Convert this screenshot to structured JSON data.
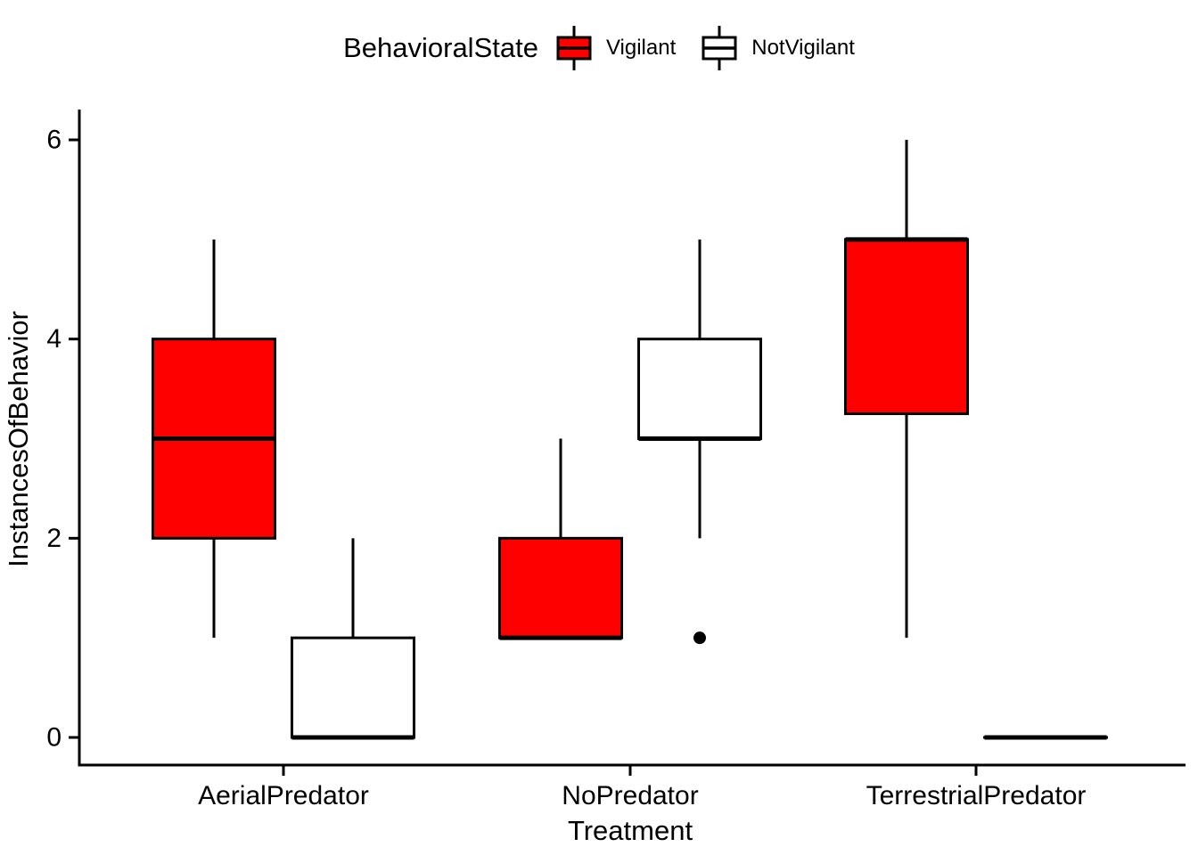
{
  "chart_data": {
    "type": "boxplot",
    "legend_title": "BehavioralState",
    "legend_position": "top",
    "xlabel": "Treatment",
    "ylabel": "InstancesOfBehavior",
    "yticks": [
      0,
      2,
      4,
      6
    ],
    "ylim": [
      -0.3,
      6.3
    ],
    "grid": false,
    "axis_color": "#000000",
    "categories": [
      "AerialPredator",
      "NoPredator",
      "TerrestrialPredator"
    ],
    "series": [
      {
        "name": "Vigilant",
        "fill": "#FF0000",
        "boxes": [
          {
            "min": 1,
            "q1": 2,
            "median": 3,
            "q3": 4,
            "max": 5,
            "outliers": []
          },
          {
            "min": 1,
            "q1": 1,
            "median": 1,
            "q3": 2,
            "max": 3,
            "outliers": []
          },
          {
            "min": 1,
            "q1": 3.25,
            "median": 5,
            "q3": 5,
            "max": 6,
            "outliers": []
          }
        ]
      },
      {
        "name": "NotVigilant",
        "fill": "#FFFFFF",
        "boxes": [
          {
            "min": 0,
            "q1": 0,
            "median": 0,
            "q3": 1,
            "max": 2,
            "outliers": []
          },
          {
            "min": 2,
            "q1": 3,
            "median": 3,
            "q3": 4,
            "max": 5,
            "outliers": [
              1
            ]
          },
          {
            "min": 0,
            "q1": 0,
            "median": 0,
            "q3": 0,
            "max": 0,
            "outliers": []
          }
        ]
      }
    ]
  }
}
